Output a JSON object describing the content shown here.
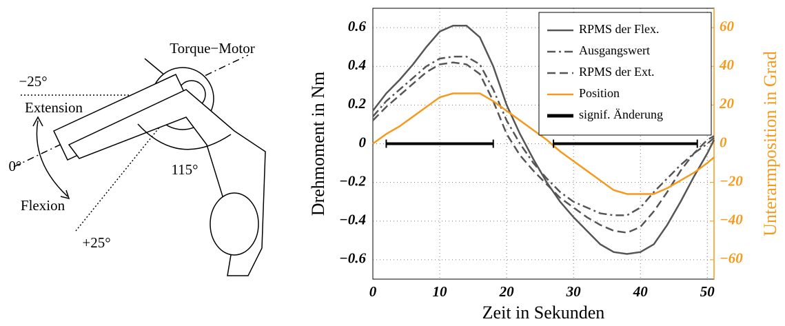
{
  "diagram": {
    "labels": [
      "Torque−Motor",
      "−25°",
      "Extension",
      "0°",
      "Flexion",
      "+25°",
      "115°"
    ]
  },
  "chart_data": {
    "type": "line",
    "xlabel": "Zeit in Sekunden",
    "ylabel": "Drehmoment in Nm",
    "y2label": "Unterarmposition in Grad",
    "y2color": "#f59a1c",
    "grid": true,
    "legend": "upper right",
    "xlim": [
      0,
      51
    ],
    "xticks": [
      0,
      10,
      20,
      30,
      40,
      50
    ],
    "ylim": [
      -0.7,
      0.7
    ],
    "yticks": [
      {
        "value": -0.6,
        "label": "−0.6"
      },
      {
        "value": -0.4,
        "label": "−0.4"
      },
      {
        "value": -0.2,
        "label": "−0.2"
      },
      0,
      0.2,
      0.4,
      0.6
    ],
    "y2lim": [
      -70,
      70
    ],
    "y2ticks": [
      {
        "value": -60,
        "label": "−60"
      },
      {
        "value": -40,
        "label": "−40"
      },
      {
        "value": -20,
        "label": "−20"
      },
      0,
      20,
      40,
      60
    ],
    "x": [
      0,
      2,
      4,
      6,
      8,
      10,
      12,
      14,
      16,
      18,
      20,
      22,
      24,
      26,
      28,
      30,
      32,
      34,
      36,
      38,
      40,
      42,
      44,
      46,
      48,
      50,
      51
    ],
    "series": [
      {
        "name": "RPMS der Flex.",
        "color": "#555555",
        "dash": "solid",
        "values": [
          0.17,
          0.26,
          0.33,
          0.41,
          0.5,
          0.58,
          0.61,
          0.61,
          0.55,
          0.4,
          0.2,
          0.05,
          -0.08,
          -0.2,
          -0.3,
          -0.38,
          -0.45,
          -0.52,
          -0.56,
          -0.57,
          -0.56,
          -0.52,
          -0.42,
          -0.3,
          -0.17,
          -0.05,
          0.02
        ]
      },
      {
        "name": "Ausgangswert",
        "color": "#555555",
        "dash": "dashdot",
        "values": [
          0.14,
          0.22,
          0.28,
          0.34,
          0.4,
          0.44,
          0.45,
          0.45,
          0.41,
          0.28,
          0.12,
          0.0,
          -0.1,
          -0.18,
          -0.25,
          -0.3,
          -0.33,
          -0.36,
          -0.37,
          -0.37,
          -0.33,
          -0.25,
          -0.18,
          -0.11,
          -0.05,
          0.0,
          0.03
        ]
      },
      {
        "name": "RPMS der Ext.",
        "color": "#555555",
        "dash": "dashed",
        "values": [
          0.12,
          0.19,
          0.25,
          0.31,
          0.37,
          0.41,
          0.42,
          0.41,
          0.36,
          0.22,
          0.05,
          -0.06,
          -0.14,
          -0.21,
          -0.28,
          -0.33,
          -0.38,
          -0.42,
          -0.45,
          -0.46,
          -0.43,
          -0.35,
          -0.25,
          -0.14,
          -0.05,
          0.02,
          0.04
        ]
      },
      {
        "name": "Position",
        "color": "#f59a1c",
        "dash": "solid",
        "axis": "y2",
        "values": [
          0,
          5,
          9,
          14,
          19,
          24,
          26,
          26,
          26,
          22,
          17,
          12,
          7,
          2,
          -4,
          -9,
          -14,
          -19,
          -24,
          -26,
          -26,
          -26,
          -23,
          -19,
          -15,
          -10,
          -7
        ]
      }
    ],
    "intervals": {
      "name": "signif. Änderung",
      "color": "#000000",
      "spans": [
        [
          2,
          18
        ],
        [
          27,
          48.5
        ]
      ]
    }
  }
}
